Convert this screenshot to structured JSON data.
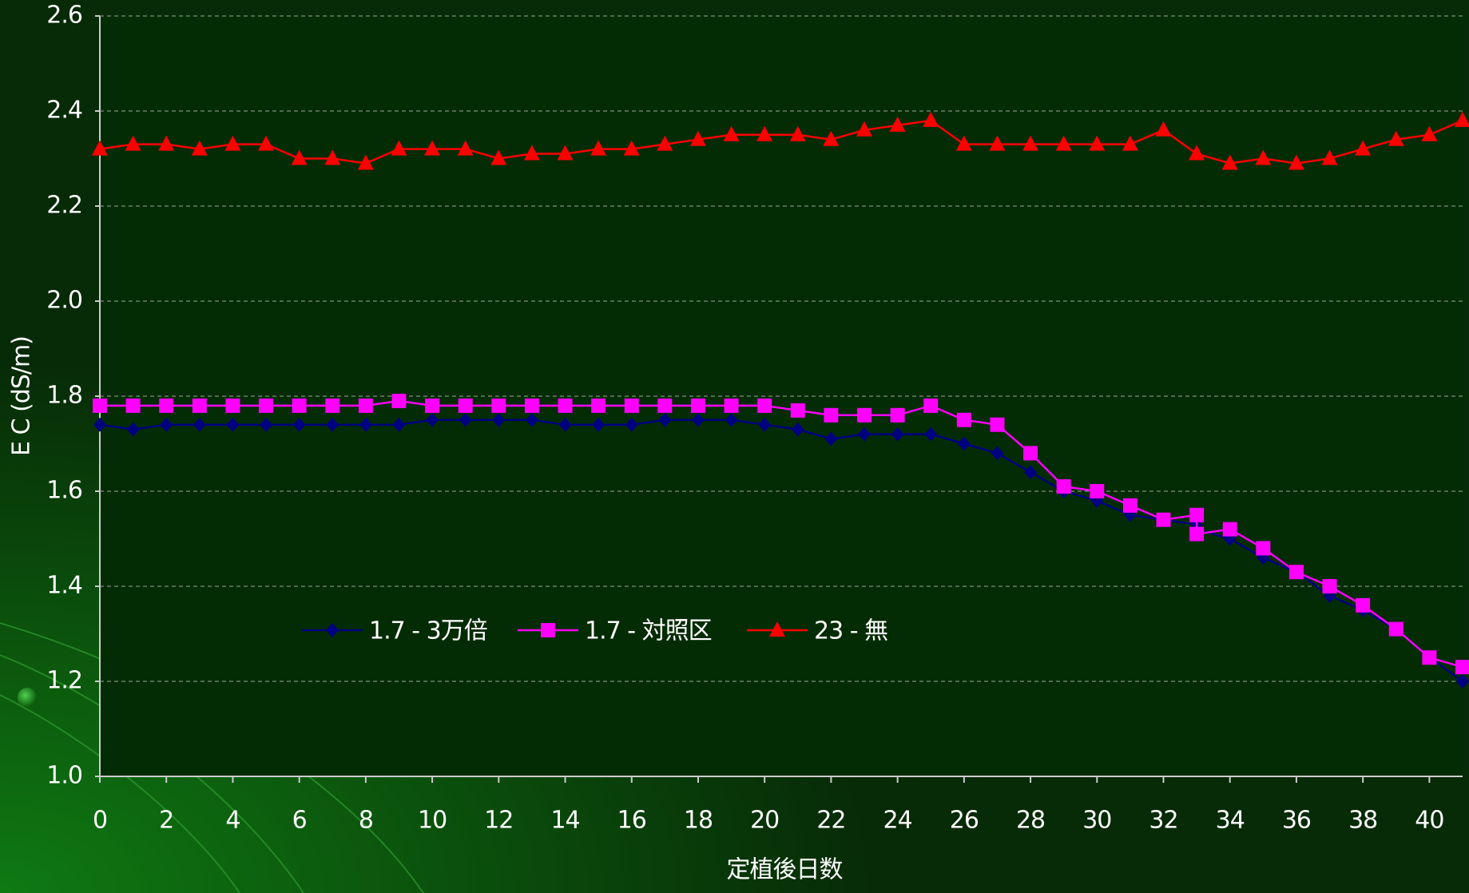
{
  "chart_data": {
    "type": "line",
    "x_label": "定植後日数",
    "y_label": "E C (dS/m)",
    "x": [
      0,
      1,
      2,
      3,
      4,
      5,
      6,
      7,
      8,
      9,
      10,
      11,
      12,
      13,
      14,
      15,
      16,
      17,
      18,
      19,
      20,
      21,
      22,
      23,
      24,
      25,
      26,
      27,
      28,
      29,
      30,
      31,
      32,
      33,
      33,
      34,
      35,
      36,
      37,
      38,
      39,
      40,
      41
    ],
    "series": [
      {
        "name": "1.7 - 3万倍",
        "color": "#000080",
        "marker": "diamond",
        "values": [
          1.74,
          1.73,
          1.74,
          1.74,
          1.74,
          1.74,
          1.74,
          1.74,
          1.74,
          1.74,
          1.75,
          1.75,
          1.75,
          1.75,
          1.74,
          1.74,
          1.74,
          1.75,
          1.75,
          1.75,
          1.74,
          1.73,
          1.71,
          1.72,
          1.72,
          1.72,
          1.7,
          1.68,
          1.64,
          1.6,
          1.58,
          1.55,
          1.54,
          1.53,
          1.52,
          1.5,
          1.46,
          1.43,
          1.38,
          1.35,
          1.31,
          1.25,
          1.2
        ]
      },
      {
        "name": "1.7 - 対照区",
        "color": "#ff00ff",
        "marker": "square",
        "values": [
          1.78,
          1.78,
          1.78,
          1.78,
          1.78,
          1.78,
          1.78,
          1.78,
          1.78,
          1.79,
          1.78,
          1.78,
          1.78,
          1.78,
          1.78,
          1.78,
          1.78,
          1.78,
          1.78,
          1.78,
          1.78,
          1.77,
          1.76,
          1.76,
          1.76,
          1.78,
          1.75,
          1.74,
          1.68,
          1.61,
          1.6,
          1.57,
          1.54,
          1.55,
          1.51,
          1.52,
          1.48,
          1.43,
          1.4,
          1.36,
          1.31,
          1.25,
          1.23
        ]
      },
      {
        "name": "23 - 無",
        "color": "#ff0000",
        "marker": "triangle",
        "values": [
          2.32,
          2.33,
          2.33,
          2.32,
          2.33,
          2.33,
          2.3,
          2.3,
          2.29,
          2.32,
          2.32,
          2.32,
          2.3,
          2.31,
          2.31,
          2.32,
          2.32,
          2.33,
          2.34,
          2.35,
          2.35,
          2.35,
          2.34,
          2.36,
          2.37,
          2.38,
          2.33,
          2.33,
          2.33,
          2.33,
          2.33,
          2.33,
          2.36,
          2.31,
          2.31,
          2.29,
          2.3,
          2.29,
          2.3,
          2.32,
          2.34,
          2.35,
          2.38
        ]
      }
    ],
    "xlim": [
      0,
      41
    ],
    "xticks": [
      0,
      2,
      4,
      6,
      8,
      10,
      12,
      14,
      16,
      18,
      20,
      22,
      24,
      26,
      28,
      30,
      32,
      34,
      36,
      38,
      40
    ],
    "ylim": [
      1,
      2.6
    ],
    "yticks": [
      {
        "value": 1,
        "label": "1.0"
      },
      1.2,
      1.4,
      1.6,
      1.8,
      {
        "value": 2,
        "label": "2.0"
      },
      2.2,
      2.4,
      2.6
    ],
    "grid": true
  }
}
